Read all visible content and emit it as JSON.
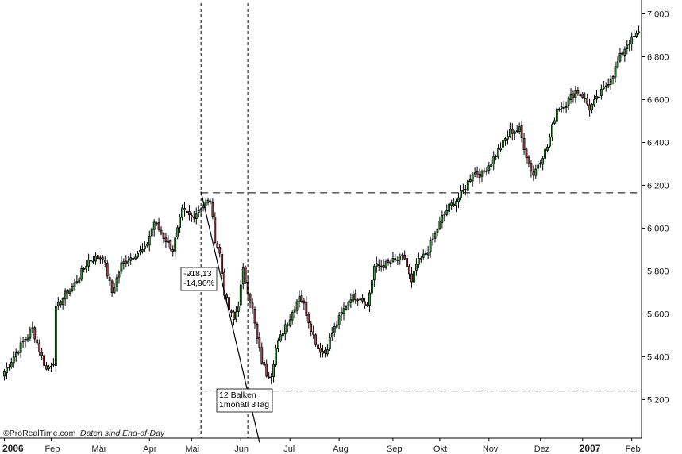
{
  "chart_data": {
    "type": "candlestick",
    "title": "",
    "ylim": [
      5020,
      7050
    ],
    "y_ticks": [
      "7.000",
      "6.800",
      "6.600",
      "6.400",
      "6.200",
      "6.000",
      "5.800",
      "5.600",
      "5.400",
      "5.200"
    ],
    "y_tick_values": [
      7000,
      6800,
      6600,
      6400,
      6200,
      6000,
      5800,
      5600,
      5400,
      5200
    ],
    "x_labels": [
      {
        "label": "2006",
        "index": 0,
        "year": true
      },
      {
        "label": "Feb",
        "index": 20
      },
      {
        "label": "Mär",
        "index": 40
      },
      {
        "label": "Apr",
        "index": 62
      },
      {
        "label": "Mai",
        "index": 80
      },
      {
        "label": "Jun",
        "index": 101
      },
      {
        "label": "Jul",
        "index": 122
      },
      {
        "label": "Aug",
        "index": 143
      },
      {
        "label": "Sep",
        "index": 166
      },
      {
        "label": "Okt",
        "index": 186
      },
      {
        "label": "Nov",
        "index": 207
      },
      {
        "label": "Dez",
        "index": 229
      },
      {
        "label": "2007",
        "index": 247,
        "year": true
      },
      {
        "label": "Feb",
        "index": 268
      }
    ],
    "candle_count": 272,
    "series": [
      {
        "name": "",
        "anchors": [
          [
            0,
            5330
          ],
          [
            8,
            5470
          ],
          [
            12,
            5530
          ],
          [
            16,
            5400
          ],
          [
            18,
            5340
          ],
          [
            21,
            5380
          ],
          [
            22,
            5620
          ],
          [
            26,
            5690
          ],
          [
            30,
            5740
          ],
          [
            36,
            5850
          ],
          [
            42,
            5870
          ],
          [
            46,
            5700
          ],
          [
            50,
            5830
          ],
          [
            56,
            5880
          ],
          [
            60,
            5900
          ],
          [
            64,
            6030
          ],
          [
            68,
            5960
          ],
          [
            72,
            5900
          ],
          [
            76,
            6080
          ],
          [
            80,
            6050
          ],
          [
            84,
            6100
          ],
          [
            88,
            6130
          ],
          [
            90,
            5950
          ],
          [
            92,
            5880
          ],
          [
            94,
            5700
          ],
          [
            96,
            5620
          ],
          [
            98,
            5570
          ],
          [
            100,
            5650
          ],
          [
            102,
            5800
          ],
          [
            106,
            5620
          ],
          [
            108,
            5480
          ],
          [
            110,
            5380
          ],
          [
            112,
            5320
          ],
          [
            114,
            5320
          ],
          [
            116,
            5440
          ],
          [
            118,
            5490
          ],
          [
            120,
            5550
          ],
          [
            122,
            5580
          ],
          [
            126,
            5690
          ],
          [
            128,
            5640
          ],
          [
            132,
            5500
          ],
          [
            134,
            5440
          ],
          [
            137,
            5420
          ],
          [
            140,
            5510
          ],
          [
            144,
            5600
          ],
          [
            148,
            5680
          ],
          [
            152,
            5680
          ],
          [
            155,
            5640
          ],
          [
            158,
            5820
          ],
          [
            163,
            5830
          ],
          [
            167,
            5850
          ],
          [
            171,
            5860
          ],
          [
            174,
            5740
          ],
          [
            176,
            5830
          ],
          [
            180,
            5880
          ],
          [
            184,
            5970
          ],
          [
            187,
            6050
          ],
          [
            190,
            6100
          ],
          [
            193,
            6130
          ],
          [
            196,
            6170
          ],
          [
            200,
            6260
          ],
          [
            204,
            6250
          ],
          [
            208,
            6310
          ],
          [
            212,
            6380
          ],
          [
            216,
            6450
          ],
          [
            220,
            6460
          ],
          [
            224,
            6300
          ],
          [
            226,
            6250
          ],
          [
            228,
            6300
          ],
          [
            232,
            6380
          ],
          [
            236,
            6560
          ],
          [
            240,
            6580
          ],
          [
            244,
            6640
          ],
          [
            247,
            6620
          ],
          [
            250,
            6560
          ],
          [
            253,
            6600
          ],
          [
            256,
            6650
          ],
          [
            260,
            6720
          ],
          [
            263,
            6800
          ],
          [
            266,
            6860
          ],
          [
            271,
            6910
          ]
        ]
      }
    ],
    "lines": {
      "resistance_level": 6165,
      "support_level": 5240,
      "vline_start_index": 84,
      "vline_end_index": 104,
      "trend_from": [
        84,
        6170
      ],
      "trend_to": [
        109,
        5000
      ]
    },
    "annotations": [
      {
        "lines": [
          "-918,13",
          "-14,90%"
        ],
        "near_index": 71,
        "near_value": 5670
      },
      {
        "lines": [
          "12 Balken",
          "1monatl 3Tag"
        ],
        "near_index": 85,
        "near_value": 5200
      }
    ]
  },
  "footer": {
    "brand": "©ProRealTime.com",
    "note": "Daten sind End-of-Day"
  },
  "colors": {
    "up": "#3cb043",
    "down": "#c0505e",
    "wick": "#000000",
    "grid": "#000000",
    "background": "#ffffff"
  }
}
